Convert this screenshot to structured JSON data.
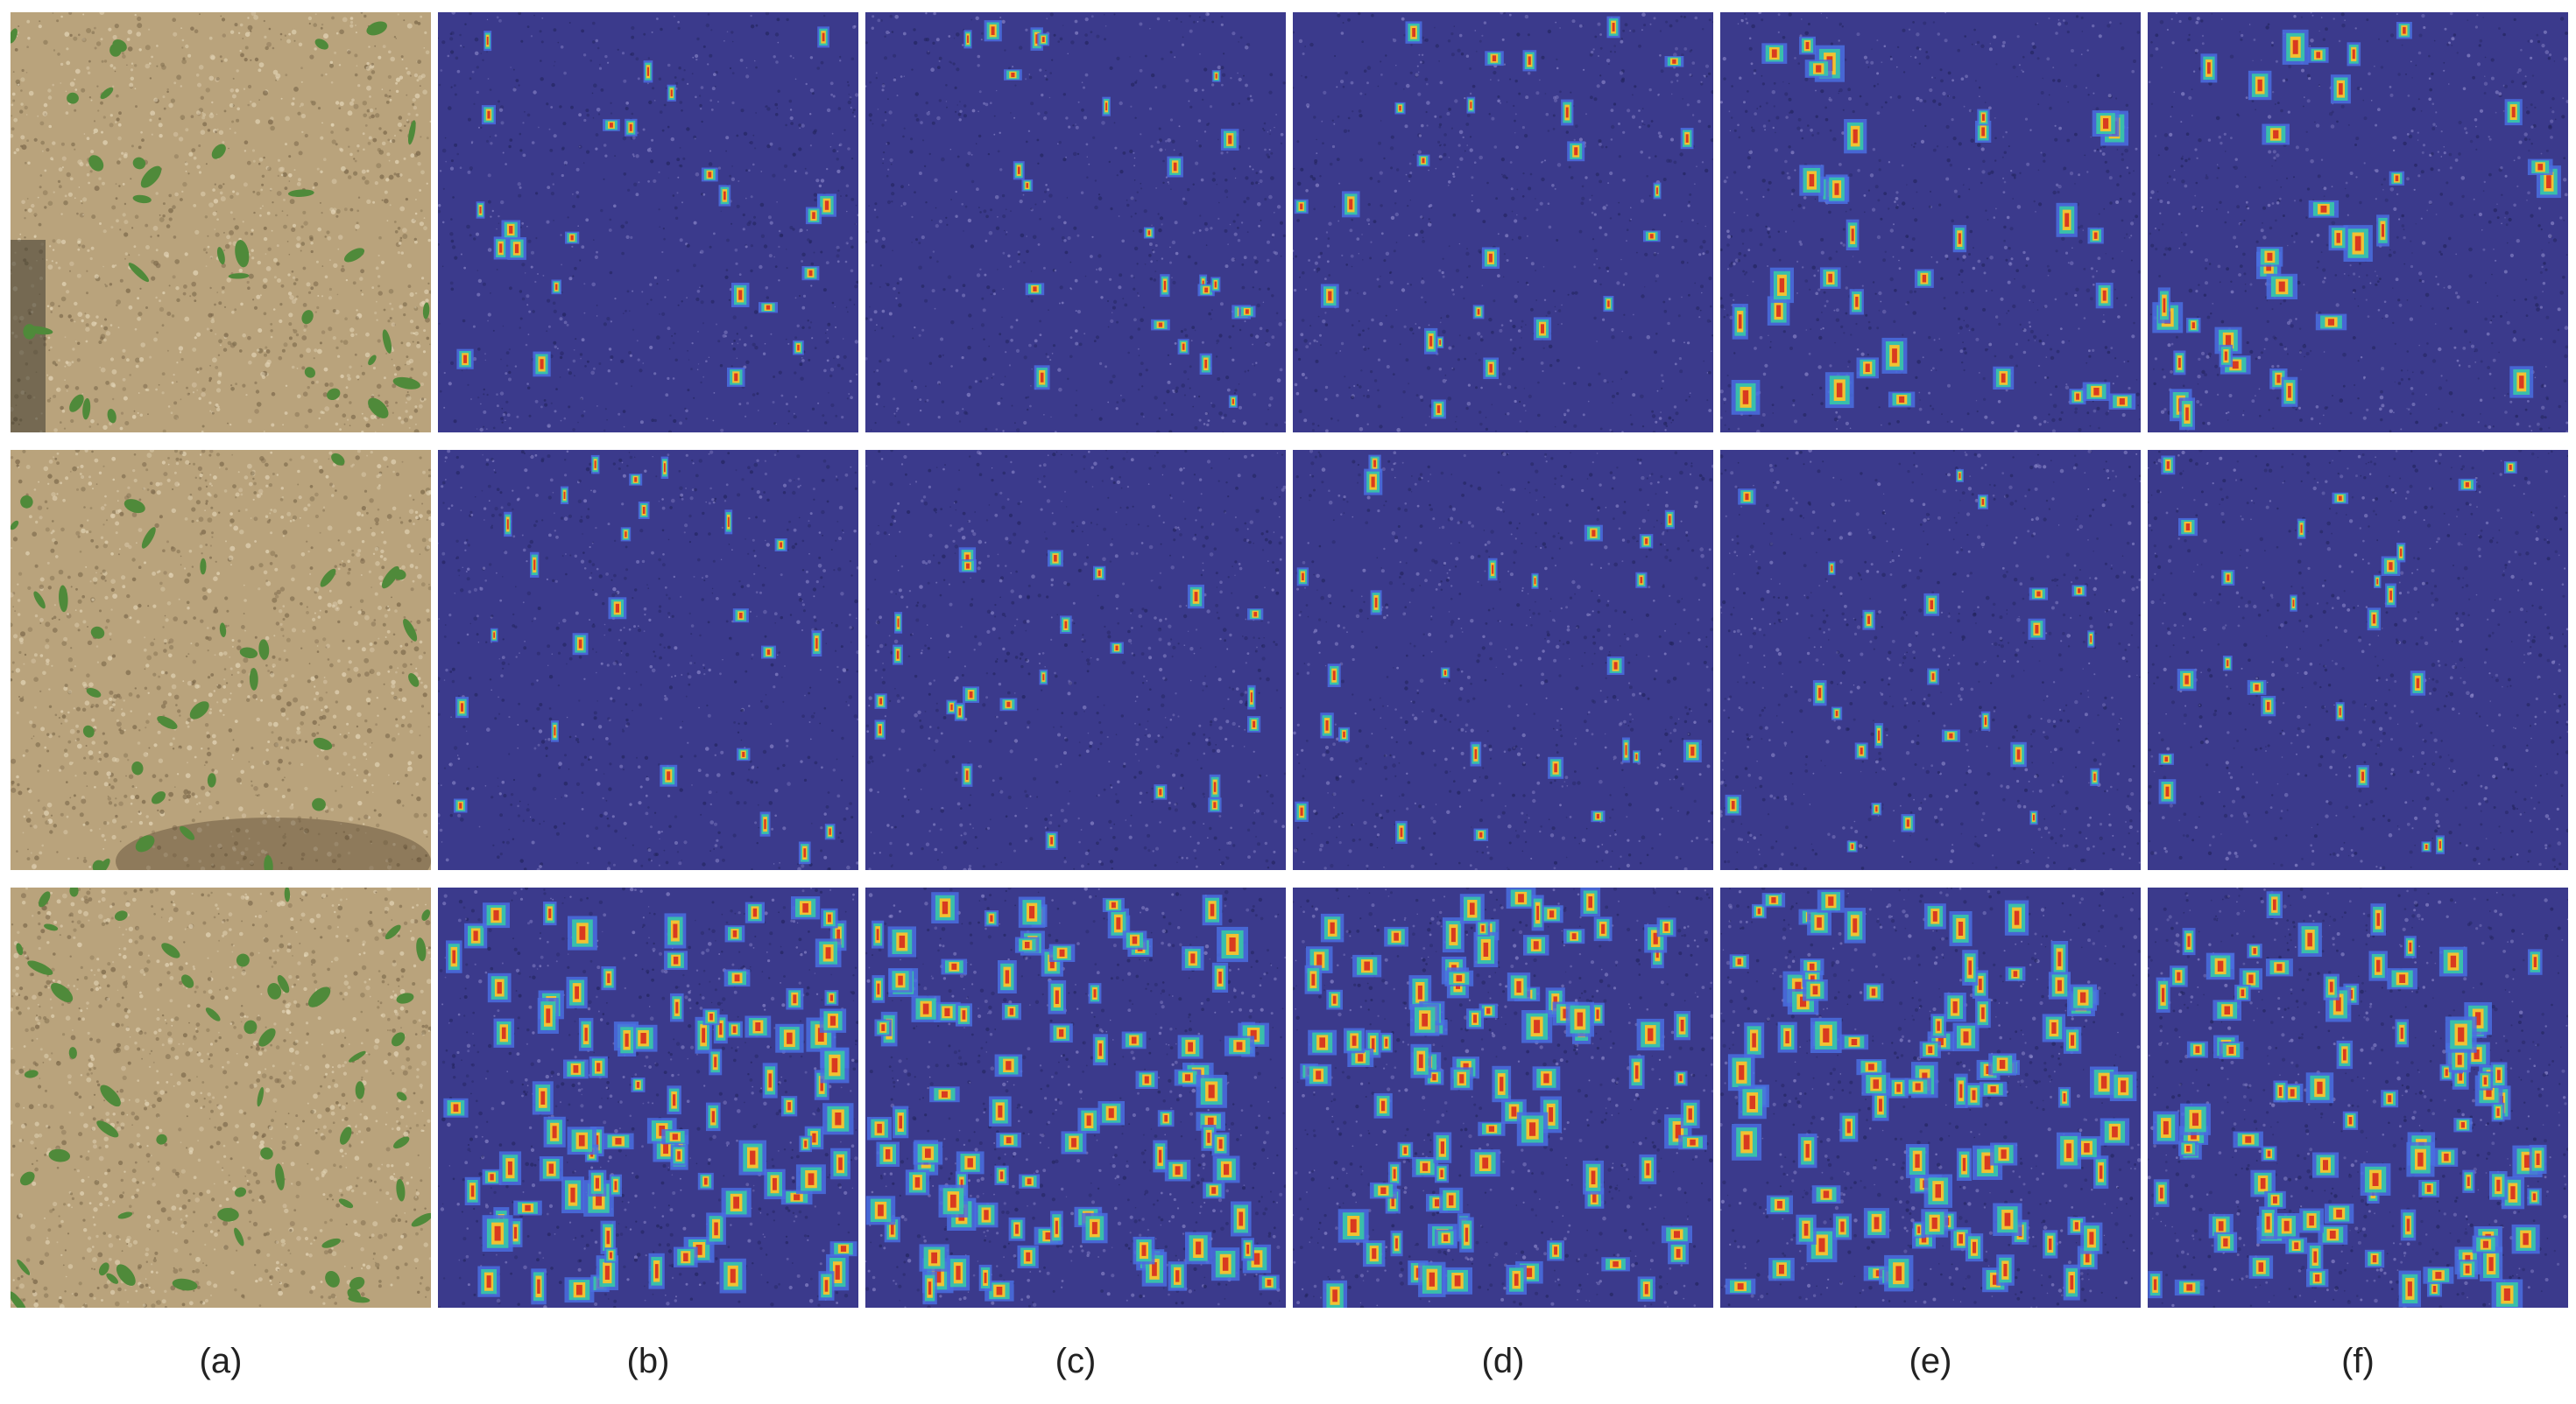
{
  "figure": {
    "captions": [
      "(a)",
      "(b)",
      "(c)",
      "(d)",
      "(e)",
      "(f)"
    ],
    "rows": [
      {
        "tiles": [
          {
            "type": "photo-field"
          },
          {
            "type": "heatmap-sparse"
          },
          {
            "type": "heatmap-sparse"
          },
          {
            "type": "heatmap-sparse"
          },
          {
            "type": "heatmap-medium"
          },
          {
            "type": "heatmap-medium"
          }
        ]
      },
      {
        "tiles": [
          {
            "type": "photo-field"
          },
          {
            "type": "heatmap-sparse"
          },
          {
            "type": "heatmap-sparse"
          },
          {
            "type": "heatmap-sparse"
          },
          {
            "type": "heatmap-sparse"
          },
          {
            "type": "heatmap-sparse"
          }
        ]
      },
      {
        "tiles": [
          {
            "type": "photo-field-dense"
          },
          {
            "type": "heatmap-dense"
          },
          {
            "type": "heatmap-dense"
          },
          {
            "type": "heatmap-dense"
          },
          {
            "type": "heatmap-dense"
          },
          {
            "type": "heatmap-dense"
          }
        ]
      }
    ],
    "colors": {
      "soil": "#b9a37c",
      "soil_dark": "#7d6a4c",
      "leaf": "#4f8a3a",
      "overlay": "#3b3a8c",
      "overlay_dark": "#24255f",
      "hot": "#d93a1f",
      "warm": "#f1c232",
      "mid": "#37c9a6",
      "cool": "#4a6fe0"
    }
  }
}
